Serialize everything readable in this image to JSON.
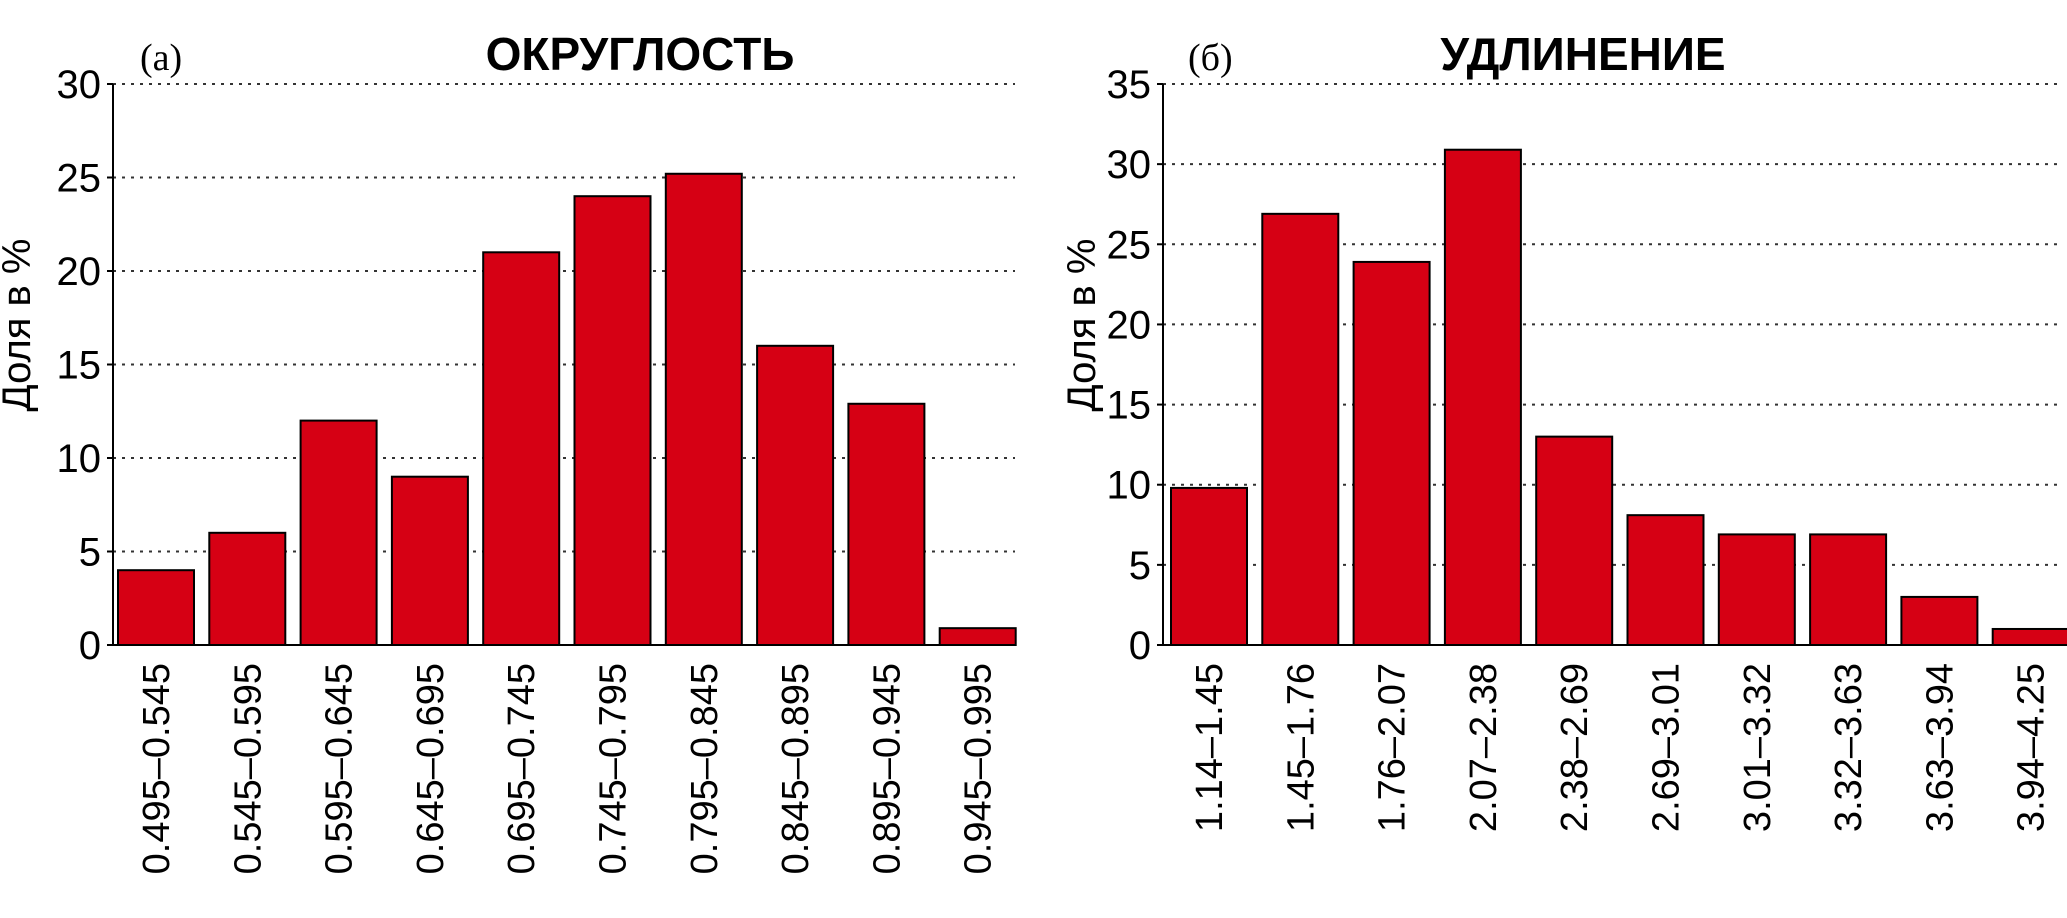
{
  "chart_data": [
    {
      "type": "bar",
      "panel_label": "(а)",
      "title": "ОКРУГЛОСТЬ",
      "ylabel": "Доля в %",
      "xlabel": "",
      "ylim": [
        0,
        30
      ],
      "yticks": [
        "0",
        "5",
        "10",
        "15",
        "20",
        "25",
        "30"
      ],
      "grid": true,
      "bar_color": "#d60014",
      "categories": [
        "0.495–0.545",
        "0.545–0.595",
        "0.595–0.645",
        "0.645–0.695",
        "0.695–0.745",
        "0.745–0.795",
        "0.795–0.845",
        "0.845–0.895",
        "0.895–0.945",
        "0.945–0.995"
      ],
      "values": [
        4,
        6,
        12,
        9,
        21,
        24,
        25.2,
        16,
        12.9,
        0.9
      ]
    },
    {
      "type": "bar",
      "panel_label": "(б)",
      "title": "УДЛИНЕНИЕ",
      "ylabel": "Доля в %",
      "xlabel": "",
      "ylim": [
        0,
        35
      ],
      "yticks": [
        "0",
        "5",
        "10",
        "15",
        "20",
        "25",
        "30",
        "35"
      ],
      "grid": true,
      "bar_color": "#d60014",
      "categories": [
        "1.14–1.45",
        "1.45–1.76",
        "1.76–2.07",
        "2.07–2.38",
        "2.38–2.69",
        "2.69–3.01",
        "3.01–3.32",
        "3.32–3.63",
        "3.63–3.94",
        "3.94–4.25"
      ],
      "values": [
        9.8,
        26.9,
        23.9,
        30.9,
        13,
        8.1,
        6.9,
        6.9,
        3,
        1
      ]
    }
  ]
}
